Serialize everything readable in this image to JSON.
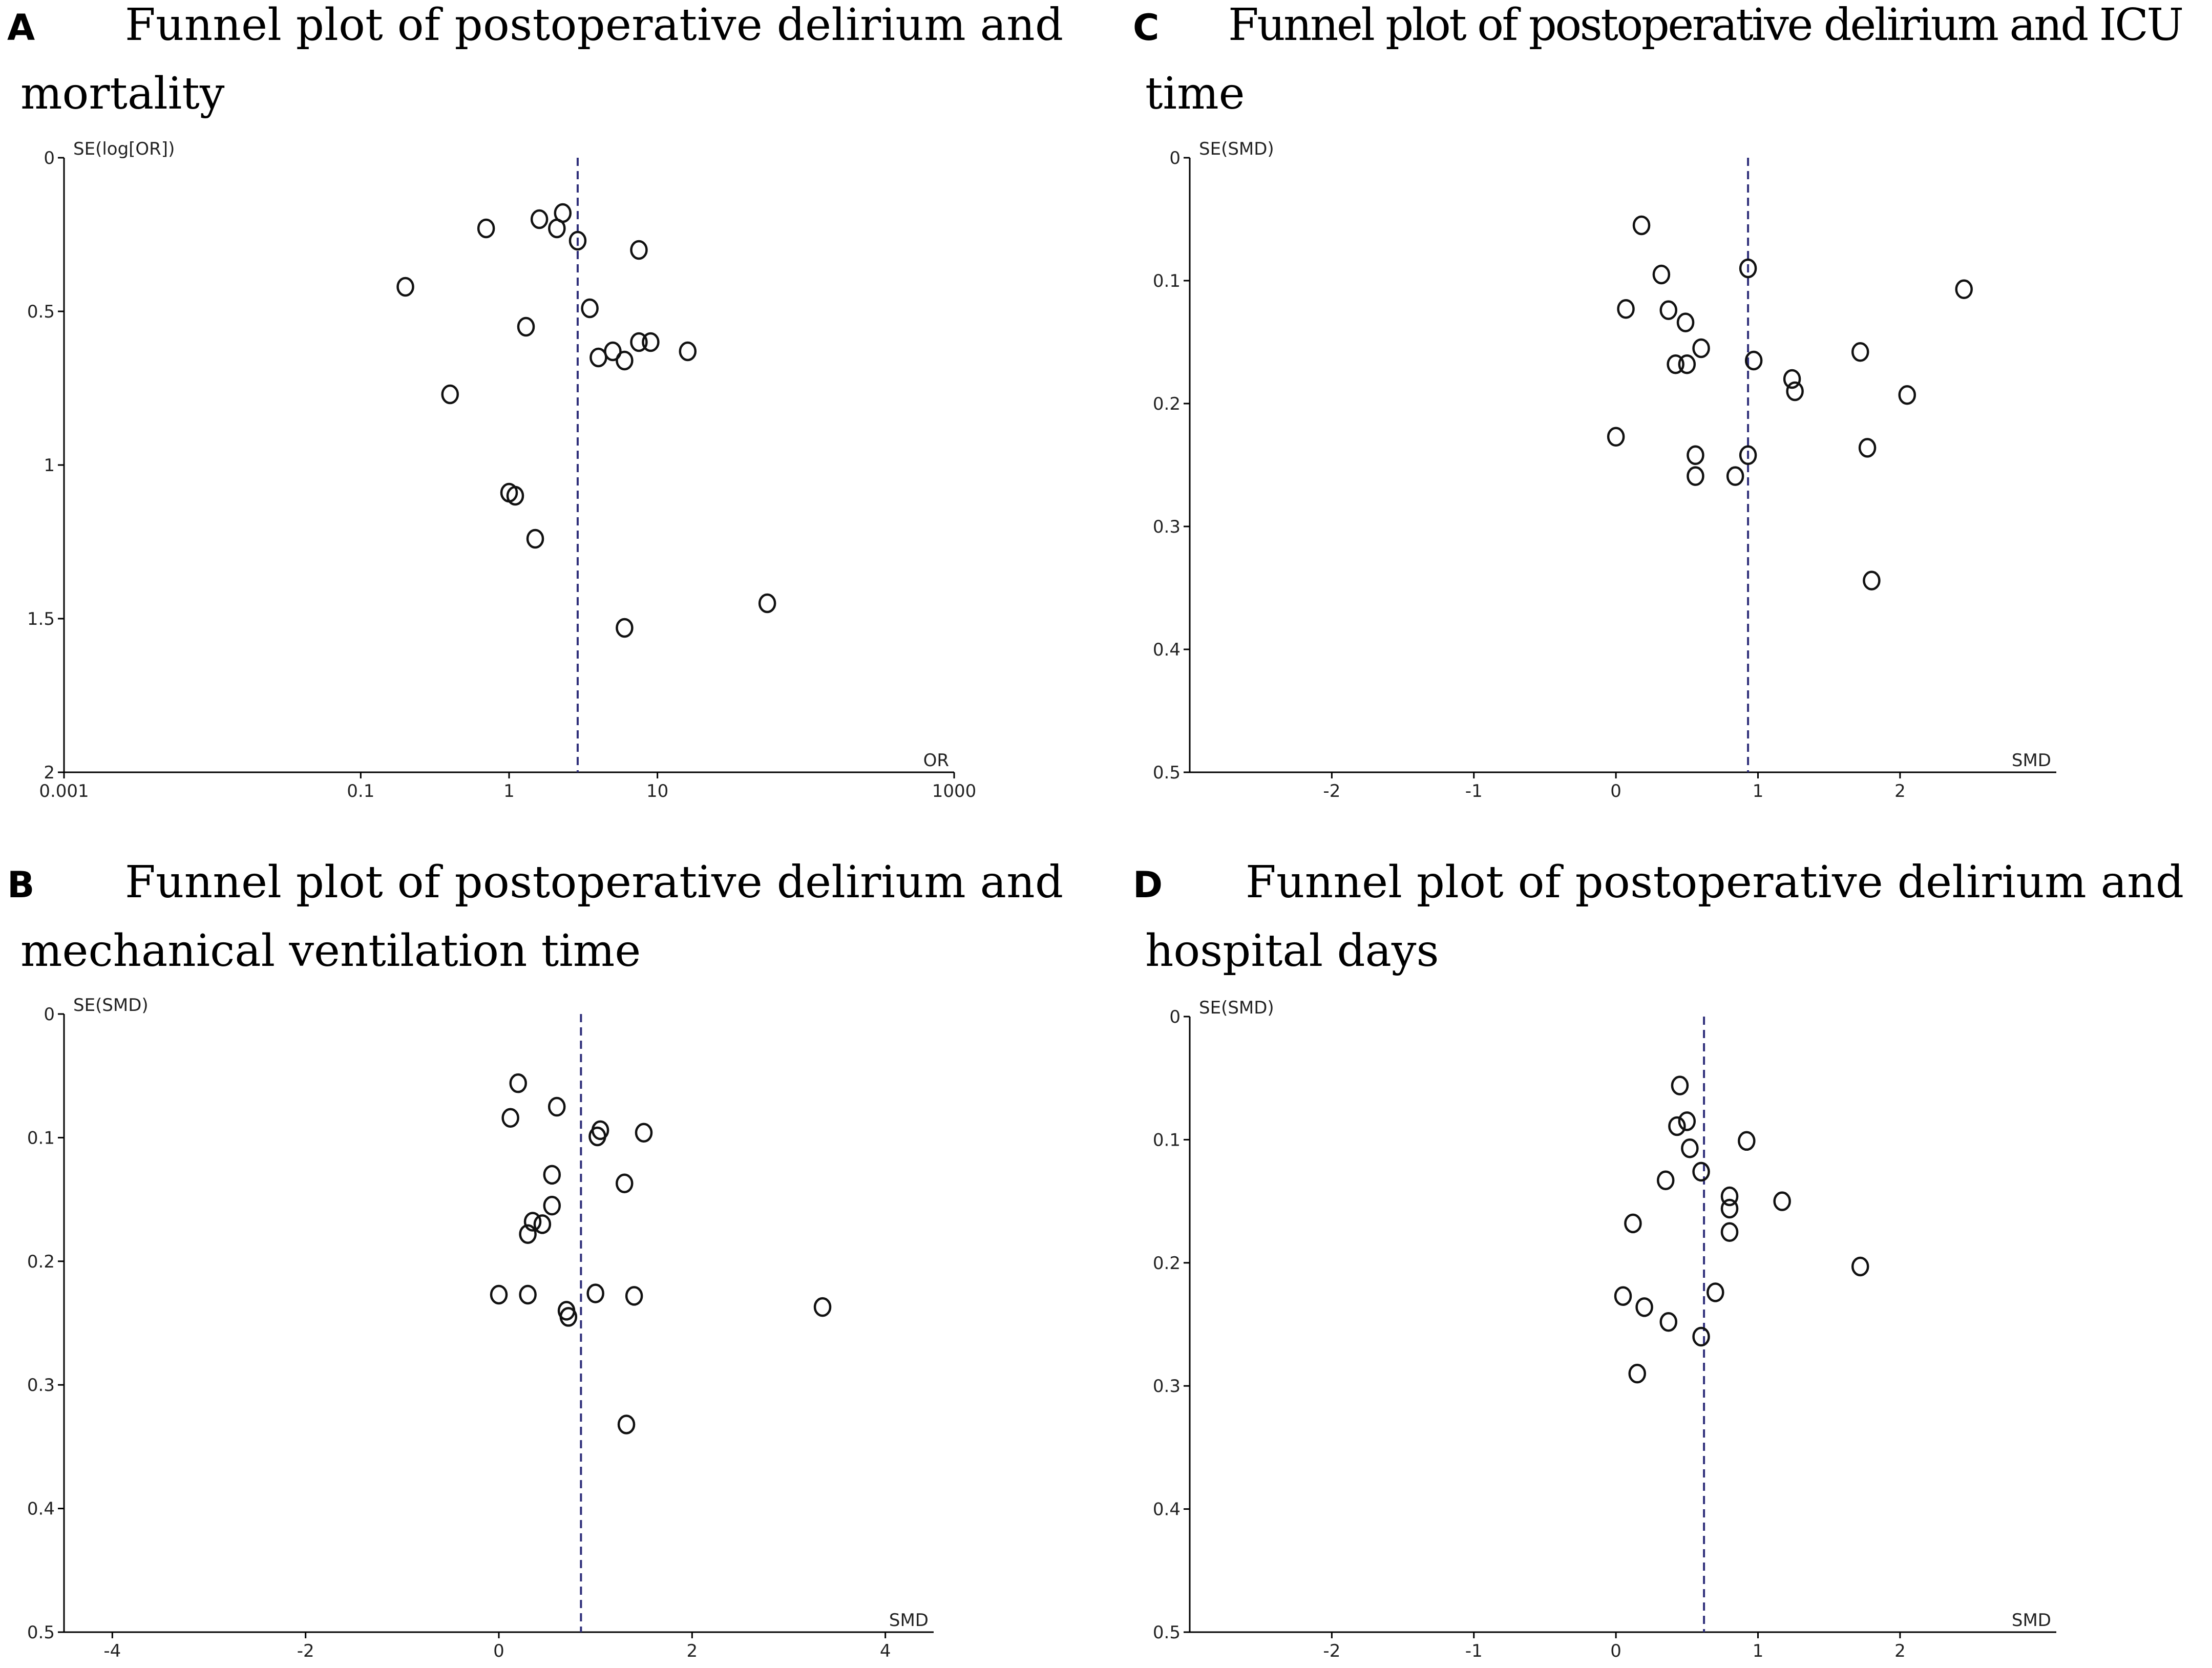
{
  "chart_data": [
    {
      "panel": "A",
      "type": "scatter",
      "title_lines": [
        "Funnel plot of postoperative delirium and",
        "mortality"
      ],
      "xlabel": "OR",
      "ylabel": "SE(log[OR])",
      "x_scale": "log",
      "xlim": [
        0.001,
        1000
      ],
      "ylim": [
        0,
        2
      ],
      "y_reversed": true,
      "xticks": [
        0.001,
        0.1,
        1,
        10,
        1000
      ],
      "xtick_labels": [
        "0.001",
        "0.1",
        "1",
        "10",
        "1000"
      ],
      "yticks": [
        0,
        0.5,
        1,
        1.5,
        2
      ],
      "ytick_labels": [
        "0",
        "0.5",
        "1",
        "1.5",
        "2"
      ],
      "reference_line": 2.9,
      "points": [
        {
          "x": 0.7,
          "y": 0.23
        },
        {
          "x": 1.6,
          "y": 0.2
        },
        {
          "x": 2.3,
          "y": 0.18
        },
        {
          "x": 2.1,
          "y": 0.23
        },
        {
          "x": 2.9,
          "y": 0.27
        },
        {
          "x": 7.5,
          "y": 0.3
        },
        {
          "x": 0.2,
          "y": 0.42
        },
        {
          "x": 3.5,
          "y": 0.49
        },
        {
          "x": 1.3,
          "y": 0.55
        },
        {
          "x": 7.5,
          "y": 0.6
        },
        {
          "x": 9.0,
          "y": 0.6
        },
        {
          "x": 16.0,
          "y": 0.63
        },
        {
          "x": 5.0,
          "y": 0.63
        },
        {
          "x": 4.0,
          "y": 0.65
        },
        {
          "x": 6.0,
          "y": 0.66
        },
        {
          "x": 0.4,
          "y": 0.77
        },
        {
          "x": 1.0,
          "y": 1.09
        },
        {
          "x": 1.1,
          "y": 1.1
        },
        {
          "x": 1.5,
          "y": 1.24
        },
        {
          "x": 55.0,
          "y": 1.45
        },
        {
          "x": 6.0,
          "y": 1.53
        }
      ]
    },
    {
      "panel": "B",
      "type": "scatter",
      "title_lines": [
        "Funnel plot of postoperative delirium and",
        "mechanical ventilation time"
      ],
      "xlabel": "SMD",
      "ylabel": "SE(SMD)",
      "x_scale": "linear",
      "xlim": [
        -4.5,
        4.5
      ],
      "ylim": [
        0,
        0.5
      ],
      "y_reversed": true,
      "xticks": [
        -4,
        -2,
        0,
        2,
        4
      ],
      "xtick_labels": [
        "-4",
        "-2",
        "0",
        "2",
        "4"
      ],
      "yticks": [
        0,
        0.1,
        0.2,
        0.3,
        0.4,
        0.5
      ],
      "ytick_labels": [
        "0",
        "0.1",
        "0.2",
        "0.3",
        "0.4",
        "0.5"
      ],
      "reference_line": 0.85,
      "points": [
        {
          "x": 0.2,
          "y": 0.056
        },
        {
          "x": 0.6,
          "y": 0.075
        },
        {
          "x": 0.12,
          "y": 0.084
        },
        {
          "x": 1.05,
          "y": 0.094
        },
        {
          "x": 1.5,
          "y": 0.096
        },
        {
          "x": 1.02,
          "y": 0.099
        },
        {
          "x": 0.55,
          "y": 0.13
        },
        {
          "x": 1.3,
          "y": 0.137
        },
        {
          "x": 0.55,
          "y": 0.155
        },
        {
          "x": 0.35,
          "y": 0.168
        },
        {
          "x": 0.45,
          "y": 0.17
        },
        {
          "x": 0.3,
          "y": 0.178
        },
        {
          "x": 0.0,
          "y": 0.227
        },
        {
          "x": 0.3,
          "y": 0.227
        },
        {
          "x": 1.0,
          "y": 0.226
        },
        {
          "x": 1.4,
          "y": 0.228
        },
        {
          "x": 0.7,
          "y": 0.24
        },
        {
          "x": 0.72,
          "y": 0.245
        },
        {
          "x": 3.35,
          "y": 0.237
        },
        {
          "x": 1.32,
          "y": 0.332
        }
      ]
    },
    {
      "panel": "C",
      "type": "scatter",
      "title_lines": [
        "Funnel plot of postoperative delirium and ICU",
        "time"
      ],
      "xlabel": "SMD",
      "ylabel": "SE(SMD)",
      "x_scale": "linear",
      "xlim": [
        -3,
        3.1
      ],
      "ylim": [
        0,
        0.5
      ],
      "y_reversed": true,
      "xticks": [
        -2,
        -1,
        0,
        1,
        2
      ],
      "xtick_labels": [
        "-2",
        "-1",
        "0",
        "1",
        "2"
      ],
      "yticks": [
        0,
        0.1,
        0.2,
        0.3,
        0.4,
        0.5
      ],
      "ytick_labels": [
        "0",
        "0.1",
        "0.2",
        "0.3",
        "0.4",
        "0.5"
      ],
      "reference_line": 0.93,
      "points": [
        {
          "x": 0.18,
          "y": 0.055
        },
        {
          "x": 0.93,
          "y": 0.09
        },
        {
          "x": 0.32,
          "y": 0.095
        },
        {
          "x": 2.45,
          "y": 0.107
        },
        {
          "x": 0.07,
          "y": 0.123
        },
        {
          "x": 0.37,
          "y": 0.124
        },
        {
          "x": 0.49,
          "y": 0.134
        },
        {
          "x": 0.6,
          "y": 0.155
        },
        {
          "x": 1.72,
          "y": 0.158
        },
        {
          "x": 0.97,
          "y": 0.165
        },
        {
          "x": 0.42,
          "y": 0.168
        },
        {
          "x": 0.5,
          "y": 0.168
        },
        {
          "x": 1.24,
          "y": 0.18
        },
        {
          "x": 1.26,
          "y": 0.19
        },
        {
          "x": 2.05,
          "y": 0.193
        },
        {
          "x": 0.0,
          "y": 0.227
        },
        {
          "x": 1.77,
          "y": 0.236
        },
        {
          "x": 0.56,
          "y": 0.242
        },
        {
          "x": 0.93,
          "y": 0.242
        },
        {
          "x": 0.56,
          "y": 0.259
        },
        {
          "x": 0.84,
          "y": 0.259
        },
        {
          "x": 1.8,
          "y": 0.344
        }
      ]
    },
    {
      "panel": "D",
      "type": "scatter",
      "title_lines": [
        "Funnel plot of postoperative delirium and",
        "hospital days"
      ],
      "xlabel": "SMD",
      "ylabel": "SE(SMD)",
      "x_scale": "linear",
      "xlim": [
        -3,
        3.1
      ],
      "ylim": [
        0,
        0.5
      ],
      "y_reversed": true,
      "xticks": [
        -2,
        -1,
        0,
        1,
        2
      ],
      "xtick_labels": [
        "-2",
        "-1",
        "0",
        "1",
        "2"
      ],
      "yticks": [
        0,
        0.1,
        0.2,
        0.3,
        0.4,
        0.5
      ],
      "ytick_labels": [
        "0",
        "0.1",
        "0.2",
        "0.3",
        "0.4",
        "0.5"
      ],
      "reference_line": 0.62,
      "points": [
        {
          "x": 0.45,
          "y": 0.056
        },
        {
          "x": 0.5,
          "y": 0.085
        },
        {
          "x": 0.43,
          "y": 0.089
        },
        {
          "x": 0.92,
          "y": 0.101
        },
        {
          "x": 0.52,
          "y": 0.107
        },
        {
          "x": 0.6,
          "y": 0.126
        },
        {
          "x": 0.35,
          "y": 0.133
        },
        {
          "x": 0.8,
          "y": 0.146
        },
        {
          "x": 1.17,
          "y": 0.15
        },
        {
          "x": 0.8,
          "y": 0.156
        },
        {
          "x": 0.12,
          "y": 0.168
        },
        {
          "x": 0.8,
          "y": 0.175
        },
        {
          "x": 1.72,
          "y": 0.203
        },
        {
          "x": 0.05,
          "y": 0.227
        },
        {
          "x": 0.7,
          "y": 0.224
        },
        {
          "x": 0.2,
          "y": 0.236
        },
        {
          "x": 0.37,
          "y": 0.248
        },
        {
          "x": 0.6,
          "y": 0.26
        },
        {
          "x": 0.15,
          "y": 0.29
        }
      ]
    }
  ]
}
